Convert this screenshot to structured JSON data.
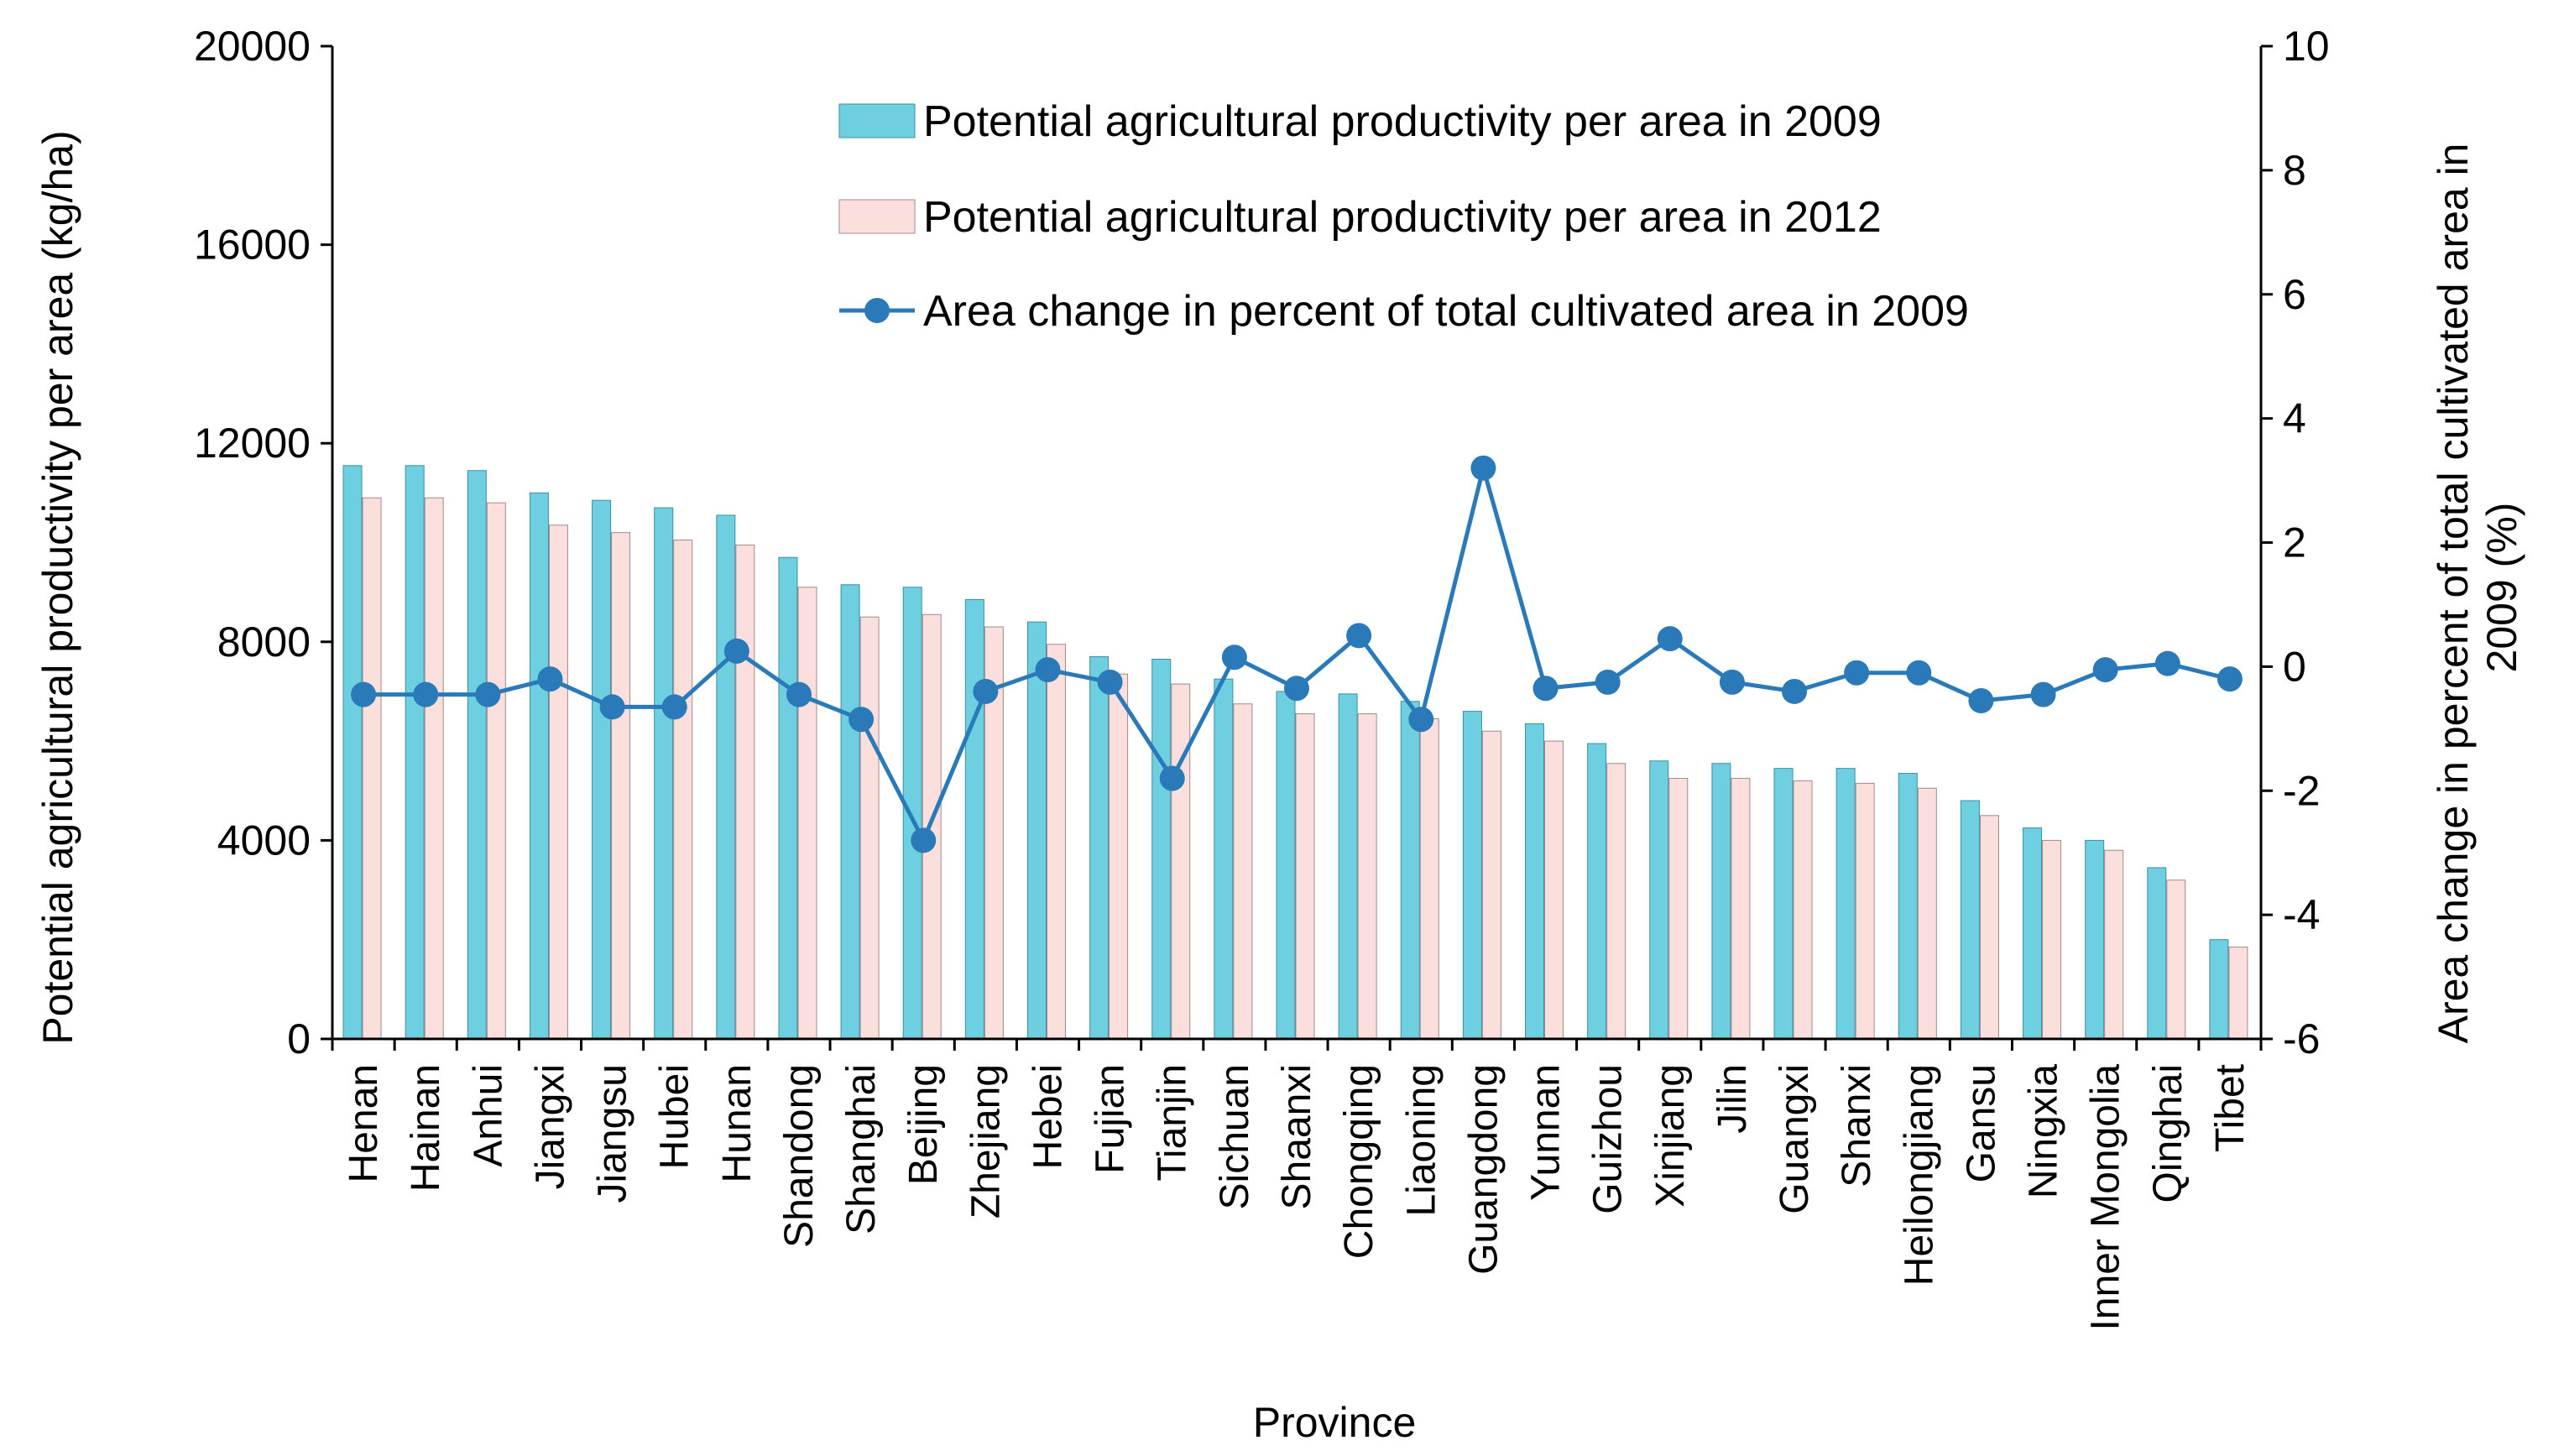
{
  "chart_data": {
    "type": "bar+line",
    "xlabel": "Province",
    "ylabel_left": "Potential agricultural productivity per area (kg/ha)",
    "ylabel_right": "Area change in percent of total cultivated area in 2009 (%)",
    "ylabel_right_lines": [
      "Area change in percent of total cultivated area in",
      "2009 (%)"
    ],
    "ylim_left": [
      0,
      20000
    ],
    "yticks_left": [
      0,
      4000,
      8000,
      12000,
      16000,
      20000
    ],
    "ylim_right": [
      -6,
      10
    ],
    "yticks_right": [
      -6,
      -4,
      -2,
      0,
      2,
      4,
      6,
      8,
      10
    ],
    "categories": [
      "Henan",
      "Hainan",
      "Anhui",
      "Jiangxi",
      "Jiangsu",
      "Hubei",
      "Hunan",
      "Shandong",
      "Shanghai",
      "Beijing",
      "Zhejiang",
      "Hebei",
      "Fujian",
      "Tianjin",
      "Sichuan",
      "Shaanxi",
      "Chongqing",
      "Liaoning",
      "Guangdong",
      "Yunnan",
      "Guizhou",
      "Xinjiang",
      "Jilin",
      "Guangxi",
      "Shanxi",
      "Heilongjiang",
      "Gansu",
      "Ningxia",
      "Inner Mongolia",
      "Qinghai",
      "Tibet"
    ],
    "series": [
      {
        "name": "Potential agricultural productivity per area in 2009",
        "kind": "bar",
        "axis": "left",
        "color": "#6ecfe0",
        "values": [
          11550,
          11550,
          11450,
          11000,
          10850,
          10700,
          10550,
          9700,
          9150,
          9100,
          8850,
          8400,
          7700,
          7650,
          7250,
          7000,
          6950,
          6800,
          6600,
          6350,
          5950,
          5600,
          5550,
          5450,
          5450,
          5350,
          4800,
          4250,
          4000,
          3450,
          2000
        ]
      },
      {
        "name": "Potential agricultural productivity per area in 2012",
        "kind": "bar",
        "axis": "left",
        "color": "#fbdfdd",
        "values": [
          10900,
          10900,
          10800,
          10350,
          10200,
          10050,
          9950,
          9100,
          8500,
          8550,
          8300,
          7950,
          7350,
          7150,
          6750,
          6550,
          6550,
          6450,
          6200,
          6000,
          5550,
          5250,
          5250,
          5200,
          5150,
          5050,
          4500,
          4000,
          3800,
          3200,
          1850
        ]
      },
      {
        "name": "Area change in percent of total cultivated area in 2009",
        "kind": "line",
        "axis": "right",
        "color": "#2a7ab9",
        "values": [
          -0.45,
          -0.45,
          -0.45,
          -0.2,
          -0.65,
          -0.65,
          0.25,
          -0.45,
          -0.85,
          -2.8,
          -0.4,
          -0.05,
          -0.25,
          -1.8,
          0.15,
          -0.35,
          0.5,
          -0.85,
          3.2,
          -0.35,
          -0.25,
          0.45,
          -0.25,
          -0.4,
          -0.1,
          -0.1,
          -0.55,
          -0.45,
          -0.05,
          0.05,
          -0.2
        ]
      }
    ],
    "legend_position": "top-center",
    "grid": false
  }
}
